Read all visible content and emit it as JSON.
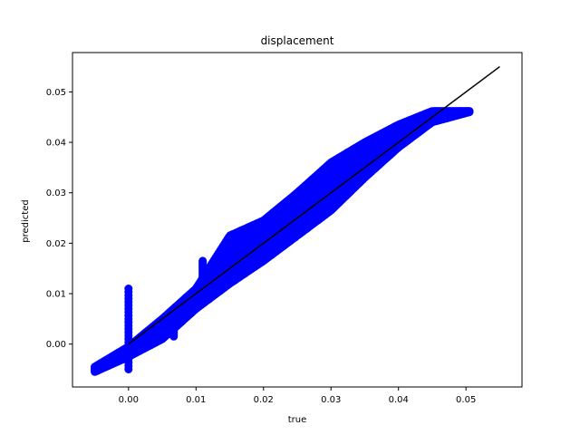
{
  "chart_data": {
    "type": "scatter",
    "title": "displacement",
    "xlabel": "true",
    "ylabel": "predicted",
    "xlim": [
      -0.0083,
      0.0583
    ],
    "ylim": [
      -0.0085,
      0.0578
    ],
    "xticks": [
      0.0,
      0.01,
      0.02,
      0.03,
      0.04,
      0.05
    ],
    "xtick_labels": [
      "0.00",
      "0.01",
      "0.02",
      "0.03",
      "0.04",
      "0.05"
    ],
    "yticks": [
      0.0,
      0.01,
      0.02,
      0.03,
      0.04,
      0.05
    ],
    "ytick_labels": [
      "0.00",
      "0.01",
      "0.02",
      "0.03",
      "0.04",
      "0.05"
    ],
    "grid": false,
    "series": [
      {
        "kind": "scatter",
        "color": "#0000ff",
        "band_lower": [
          [
            -0.005,
            -0.0055
          ],
          [
            0.0,
            -0.0025
          ],
          [
            0.005,
            0.001
          ],
          [
            0.01,
            0.007
          ],
          [
            0.015,
            0.012
          ],
          [
            0.02,
            0.0165
          ],
          [
            0.025,
            0.0215
          ],
          [
            0.03,
            0.0265
          ],
          [
            0.035,
            0.033
          ],
          [
            0.04,
            0.039
          ],
          [
            0.045,
            0.044
          ],
          [
            0.0505,
            0.046
          ]
        ],
        "band_upper": [
          [
            -0.005,
            -0.0045
          ],
          [
            0.0,
            -0.0005
          ],
          [
            0.005,
            0.005
          ],
          [
            0.01,
            0.011
          ],
          [
            0.015,
            0.0215
          ],
          [
            0.02,
            0.0245
          ],
          [
            0.025,
            0.03
          ],
          [
            0.03,
            0.036
          ],
          [
            0.035,
            0.04
          ],
          [
            0.04,
            0.0435
          ],
          [
            0.045,
            0.0462
          ],
          [
            0.0505,
            0.0462
          ]
        ],
        "spikes": [
          {
            "x": 0.0,
            "y_min": -0.005,
            "y_max": 0.011
          },
          {
            "x": 0.0067,
            "y_min": 0.0015,
            "y_max": 0.006
          },
          {
            "x": 0.011,
            "y_min": 0.011,
            "y_max": 0.0165
          }
        ]
      },
      {
        "kind": "line",
        "color": "#000000",
        "x": [
          0.0,
          0.055
        ],
        "y": [
          0.0,
          0.055
        ]
      }
    ]
  }
}
